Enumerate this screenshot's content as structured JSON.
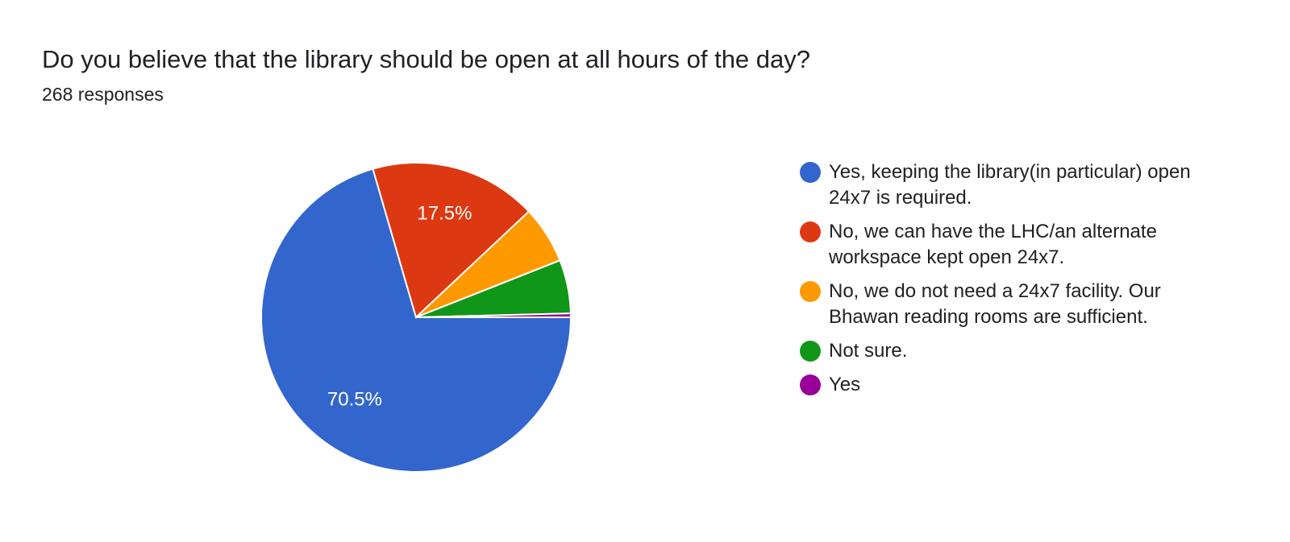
{
  "title": "Do you believe that the library should be open at all hours of the day?",
  "subtitle": "268 responses",
  "chart_data": {
    "type": "pie",
    "title": "Do you believe that the library should be open at all hours of the day?",
    "total_responses": 268,
    "slices": [
      {
        "label": "Yes, keeping the library(in particular) open 24x7 is required.",
        "value": 70.5,
        "data_label": "70.5%",
        "color": "#3366cc"
      },
      {
        "label": "No, we can have the LHC/an alternate workspace kept open 24x7.",
        "value": 17.5,
        "data_label": "17.5%",
        "color": "#dc3912"
      },
      {
        "label": "No, we do not need a 24x7 facility. Our Bhawan reading rooms are sufficient.",
        "value": 6.0,
        "data_label": "",
        "color": "#ff9900"
      },
      {
        "label": "Not sure.",
        "value": 5.6,
        "data_label": "",
        "color": "#109618"
      },
      {
        "label": "Yes",
        "value": 0.4,
        "data_label": "",
        "color": "#990099"
      }
    ],
    "legend_position": "right"
  }
}
